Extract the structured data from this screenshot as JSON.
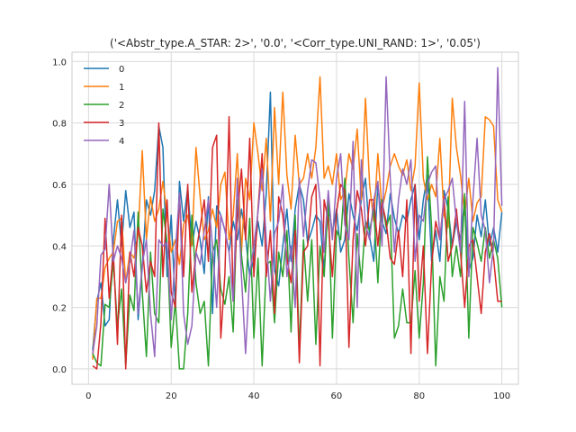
{
  "chart_data": {
    "type": "line",
    "title": "('<Abstr_type.A_STAR: 2>', '0.0', '<Corr_type.UNI_RAND: 1>', '0.05')",
    "xlabel": "",
    "ylabel": "",
    "xlim": [
      -4,
      104
    ],
    "ylim": [
      -0.05,
      1.03
    ],
    "xticks": [
      0,
      20,
      40,
      60,
      80,
      100
    ],
    "yticks": [
      0.0,
      0.2,
      0.4,
      0.6,
      0.8,
      1.0
    ],
    "xtick_labels": [
      "0",
      "20",
      "40",
      "60",
      "80",
      "100"
    ],
    "ytick_labels": [
      "0.0",
      "0.2",
      "0.4",
      "0.6",
      "0.8",
      "1.0"
    ],
    "grid": true,
    "legend_position": "top-left",
    "x": [
      1,
      2,
      3,
      4,
      5,
      6,
      7,
      8,
      9,
      10,
      11,
      12,
      13,
      14,
      15,
      16,
      17,
      18,
      19,
      20,
      21,
      22,
      23,
      24,
      25,
      26,
      27,
      28,
      29,
      30,
      31,
      32,
      33,
      34,
      35,
      36,
      37,
      38,
      39,
      40,
      41,
      42,
      43,
      44,
      45,
      46,
      47,
      48,
      49,
      50,
      51,
      52,
      53,
      54,
      55,
      56,
      57,
      58,
      59,
      60,
      61,
      62,
      63,
      64,
      65,
      66,
      67,
      68,
      69,
      70,
      71,
      72,
      73,
      74,
      75,
      76,
      77,
      78,
      79,
      80,
      81,
      82,
      83,
      84,
      85,
      86,
      87,
      88,
      89,
      90,
      91,
      92,
      93,
      94,
      95,
      96,
      97,
      98,
      99,
      100
    ],
    "series": [
      {
        "name": "0",
        "color": "#1f77b4",
        "values": [
          0.06,
          0.22,
          0.28,
          0.14,
          0.16,
          0.42,
          0.55,
          0.4,
          0.58,
          0.46,
          0.51,
          0.16,
          0.33,
          0.55,
          0.5,
          0.58,
          0.79,
          0.72,
          0.3,
          0.5,
          0.2,
          0.61,
          0.48,
          0.59,
          0.4,
          0.48,
          0.42,
          0.31,
          0.56,
          0.18,
          0.53,
          0.5,
          0.45,
          0.38,
          0.48,
          0.42,
          0.52,
          0.43,
          0.3,
          0.36,
          0.48,
          0.4,
          0.57,
          0.9,
          0.32,
          0.27,
          0.4,
          0.52,
          0.35,
          0.52,
          0.6,
          0.55,
          0.41,
          0.45,
          0.5,
          0.48,
          0.32,
          0.55,
          0.44,
          0.52,
          0.38,
          0.42,
          0.57,
          0.5,
          0.45,
          0.55,
          0.62,
          0.43,
          0.35,
          0.6,
          0.48,
          0.44,
          0.57,
          0.49,
          0.44,
          0.5,
          0.48,
          0.55,
          0.6,
          0.42,
          0.55,
          0.63,
          0.35,
          0.45,
          0.35,
          0.58,
          0.52,
          0.4,
          0.48,
          0.42,
          0.55,
          0.32,
          0.36,
          0.5,
          0.43,
          0.55,
          0.4,
          0.46,
          0.38,
          0.51
        ]
      },
      {
        "name": "1",
        "color": "#ff7f0e",
        "values": [
          0.03,
          0.23,
          0.23,
          0.33,
          0.36,
          0.38,
          0.48,
          0.49,
          0.28,
          0.38,
          0.36,
          0.44,
          0.71,
          0.42,
          0.56,
          0.48,
          0.52,
          0.61,
          0.5,
          0.38,
          0.42,
          0.34,
          0.47,
          0.5,
          0.4,
          0.72,
          0.56,
          0.42,
          0.45,
          0.52,
          0.46,
          0.6,
          0.64,
          0.42,
          0.5,
          0.7,
          0.38,
          0.62,
          0.55,
          0.8,
          0.7,
          0.58,
          0.75,
          0.48,
          0.85,
          0.6,
          0.9,
          0.63,
          0.52,
          0.76,
          0.6,
          0.62,
          0.7,
          0.62,
          0.72,
          0.95,
          0.62,
          0.66,
          0.6,
          0.7,
          0.55,
          0.58,
          0.7,
          0.65,
          0.78,
          0.55,
          0.88,
          0.6,
          0.48,
          0.7,
          0.52,
          0.58,
          0.66,
          0.7,
          0.66,
          0.63,
          0.68,
          0.58,
          0.66,
          0.93,
          0.62,
          0.55,
          0.6,
          0.56,
          0.75,
          0.5,
          0.46,
          0.88,
          0.72,
          0.63,
          0.5,
          0.62,
          0.48,
          0.54,
          0.56,
          0.82,
          0.81,
          0.79,
          0.55,
          0.51
        ]
      },
      {
        "name": "2",
        "color": "#2ca02c",
        "values": [
          0.05,
          0.02,
          0.01,
          0.21,
          0.2,
          0.35,
          0.14,
          0.26,
          0.01,
          0.24,
          0.19,
          0.51,
          0.25,
          0.04,
          0.38,
          0.18,
          0.15,
          0.52,
          0.41,
          0.07,
          0.22,
          0.0,
          0.0,
          0.18,
          0.5,
          0.28,
          0.18,
          0.22,
          0.01,
          0.38,
          0.42,
          0.26,
          0.21,
          0.3,
          0.12,
          0.55,
          0.37,
          0.25,
          0.49,
          0.1,
          0.36,
          0.01,
          0.34,
          0.35,
          0.15,
          0.38,
          0.3,
          0.45,
          0.12,
          0.5,
          0.06,
          0.42,
          0.22,
          0.42,
          0.08,
          0.4,
          0.3,
          0.55,
          0.1,
          0.45,
          0.42,
          0.62,
          0.36,
          0.15,
          0.44,
          0.28,
          0.48,
          0.45,
          0.52,
          0.28,
          0.55,
          0.46,
          0.5,
          0.1,
          0.14,
          0.26,
          0.15,
          0.15,
          0.32,
          0.1,
          0.28,
          0.69,
          0.46,
          0.01,
          0.3,
          0.22,
          0.56,
          0.3,
          0.4,
          0.3,
          0.57,
          0.1,
          0.46,
          0.41,
          0.35,
          0.46,
          0.36,
          0.42,
          0.36,
          0.2
        ]
      },
      {
        "name": "3",
        "color": "#d62728",
        "values": [
          0.01,
          0.0,
          0.15,
          0.49,
          0.23,
          0.38,
          0.08,
          0.5,
          0.0,
          0.38,
          0.3,
          0.46,
          0.4,
          0.25,
          0.35,
          0.3,
          0.8,
          0.3,
          0.55,
          0.25,
          0.2,
          0.57,
          0.3,
          0.6,
          0.25,
          0.38,
          0.46,
          0.55,
          0.35,
          0.72,
          0.76,
          0.1,
          0.31,
          0.82,
          0.22,
          0.5,
          0.65,
          0.42,
          0.75,
          0.3,
          0.52,
          0.7,
          0.3,
          0.45,
          0.18,
          0.56,
          0.5,
          0.36,
          0.28,
          0.45,
          0.02,
          0.38,
          0.4,
          0.56,
          0.6,
          0.01,
          0.55,
          0.48,
          0.3,
          0.51,
          0.6,
          0.58,
          0.07,
          0.42,
          0.58,
          0.52,
          0.4,
          0.55,
          0.55,
          0.4,
          0.54,
          0.48,
          0.36,
          0.34,
          0.45,
          0.3,
          0.55,
          0.05,
          0.6,
          0.22,
          0.4,
          0.05,
          0.34,
          0.48,
          0.42,
          0.56,
          0.35,
          0.4,
          0.52,
          0.38,
          0.2,
          0.4,
          0.42,
          0.3,
          0.18,
          0.38,
          0.44,
          0.36,
          0.22,
          0.22
        ]
      },
      {
        "name": "4",
        "color": "#9467bd",
        "values": [
          0.05,
          0.14,
          0.37,
          0.39,
          0.6,
          0.35,
          0.4,
          0.36,
          0.28,
          0.35,
          0.45,
          0.18,
          0.34,
          0.42,
          0.18,
          0.04,
          0.42,
          0.4,
          0.41,
          0.16,
          0.38,
          0.57,
          0.18,
          0.08,
          0.14,
          0.38,
          0.34,
          0.45,
          0.55,
          0.4,
          0.2,
          0.5,
          0.45,
          0.38,
          0.22,
          0.62,
          0.3,
          0.05,
          0.31,
          0.4,
          0.51,
          0.65,
          0.42,
          0.22,
          0.44,
          0.48,
          0.6,
          0.3,
          0.4,
          0.2,
          0.62,
          0.43,
          0.58,
          0.68,
          0.67,
          0.55,
          0.38,
          0.58,
          0.42,
          0.62,
          0.7,
          0.47,
          0.42,
          0.74,
          0.2,
          0.68,
          0.47,
          0.42,
          0.55,
          0.61,
          0.4,
          0.95,
          0.62,
          0.38,
          0.55,
          0.65,
          0.6,
          0.68,
          0.35,
          0.5,
          0.48,
          0.6,
          0.64,
          0.66,
          0.42,
          0.55,
          0.58,
          0.62,
          0.48,
          0.38,
          0.87,
          0.3,
          0.55,
          0.75,
          0.5,
          0.45,
          0.28,
          0.4,
          0.98,
          0.53
        ]
      }
    ]
  }
}
